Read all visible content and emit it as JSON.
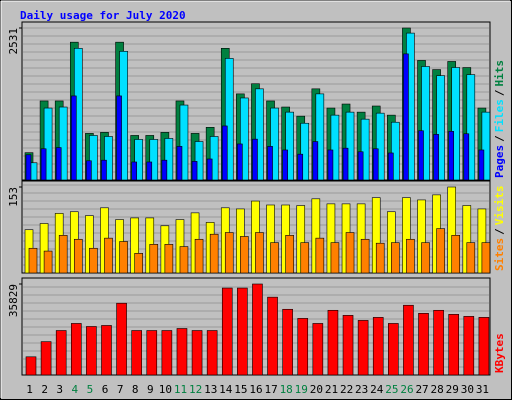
{
  "chart_data": [
    {
      "type": "bar",
      "title": "Daily usage for July 2020",
      "ylim": [
        0,
        2531
      ],
      "yticks": [
        2531
      ],
      "legend_separator": "/",
      "series": [
        {
          "name": "Hits",
          "color": "#008040",
          "values": [
            455,
            1316,
            1316,
            2295,
            776,
            793,
            2295,
            742,
            742,
            793,
            1316,
            776,
            877,
            2193,
            1434,
            1603,
            1316,
            1215,
            1063,
            1518,
            1198,
            1265,
            1130,
            1232,
            1080,
            2531,
            1991,
            1839,
            1974,
            1873,
            1198
          ]
        },
        {
          "name": "Files",
          "color": "#00e0ff",
          "values": [
            287,
            1198,
            1215,
            2193,
            742,
            725,
            2143,
            675,
            675,
            692,
            1248,
            641,
            725,
            2025,
            1366,
            1518,
            1198,
            1130,
            945,
            1434,
            1080,
            1130,
            1013,
            1113,
            962,
            2446,
            1890,
            1738,
            1873,
            1755,
            1130
          ]
        },
        {
          "name": "Pages",
          "color": "#0000ff",
          "values": [
            420,
            520,
            540,
            1400,
            320,
            330,
            1400,
            300,
            300,
            330,
            560,
            310,
            350,
            900,
            600,
            680,
            560,
            500,
            430,
            640,
            500,
            530,
            470,
            520,
            450,
            2100,
            820,
            760,
            810,
            770,
            500
          ]
        }
      ]
    },
    {
      "type": "bar",
      "ylim": [
        0,
        153
      ],
      "yticks": [
        153
      ],
      "legend_separator": "/",
      "series": [
        {
          "name": "Visits",
          "color": "#ffff00",
          "values": [
            77,
            88,
            106,
            109,
            102,
            116,
            95,
            98,
            98,
            84,
            95,
            107,
            90,
            116,
            114,
            128,
            121,
            121,
            120,
            132,
            123,
            123,
            123,
            134,
            109,
            134,
            130,
            139,
            153,
            120,
            114
          ]
        },
        {
          "name": "Sites",
          "color": "#ff8000",
          "values": [
            44,
            39,
            67,
            60,
            44,
            62,
            56,
            35,
            51,
            51,
            47,
            60,
            69,
            72,
            65,
            72,
            54,
            67,
            54,
            62,
            54,
            72,
            60,
            53,
            54,
            60,
            54,
            79,
            67,
            54,
            54
          ]
        }
      ]
    },
    {
      "type": "bar",
      "ylim": [
        0,
        35829
      ],
      "yticks": [
        35829
      ],
      "categories": [
        "1",
        "2",
        "3",
        "4",
        "5",
        "6",
        "7",
        "8",
        "9",
        "10",
        "11",
        "12",
        "13",
        "14",
        "15",
        "16",
        "17",
        "18",
        "19",
        "20",
        "21",
        "22",
        "23",
        "24",
        "25",
        "26",
        "27",
        "28",
        "29",
        "30",
        "31"
      ],
      "category_colors": [
        "#000000",
        "#000000",
        "#000000",
        "#008040",
        "#008040",
        "#000000",
        "#000000",
        "#000000",
        "#000000",
        "#000000",
        "#008040",
        "#008040",
        "#000000",
        "#000000",
        "#000000",
        "#000000",
        "#000000",
        "#008040",
        "#008040",
        "#000000",
        "#000000",
        "#000000",
        "#000000",
        "#000000",
        "#008040",
        "#008040",
        "#000000",
        "#000000",
        "#000000",
        "#000000",
        "#000000"
      ],
      "series": [
        {
          "name": "KBytes",
          "color": "#ff0000",
          "values": [
            7166,
            13137,
            17516,
            20303,
            19109,
            19507,
            28264,
            17516,
            17516,
            17516,
            18312,
            17516,
            17516,
            34236,
            34236,
            35829,
            30653,
            25876,
            22293,
            20303,
            25478,
            23487,
            21497,
            22691,
            20303,
            27468,
            24284,
            25478,
            23885,
            23089,
            22691
          ]
        }
      ]
    }
  ]
}
